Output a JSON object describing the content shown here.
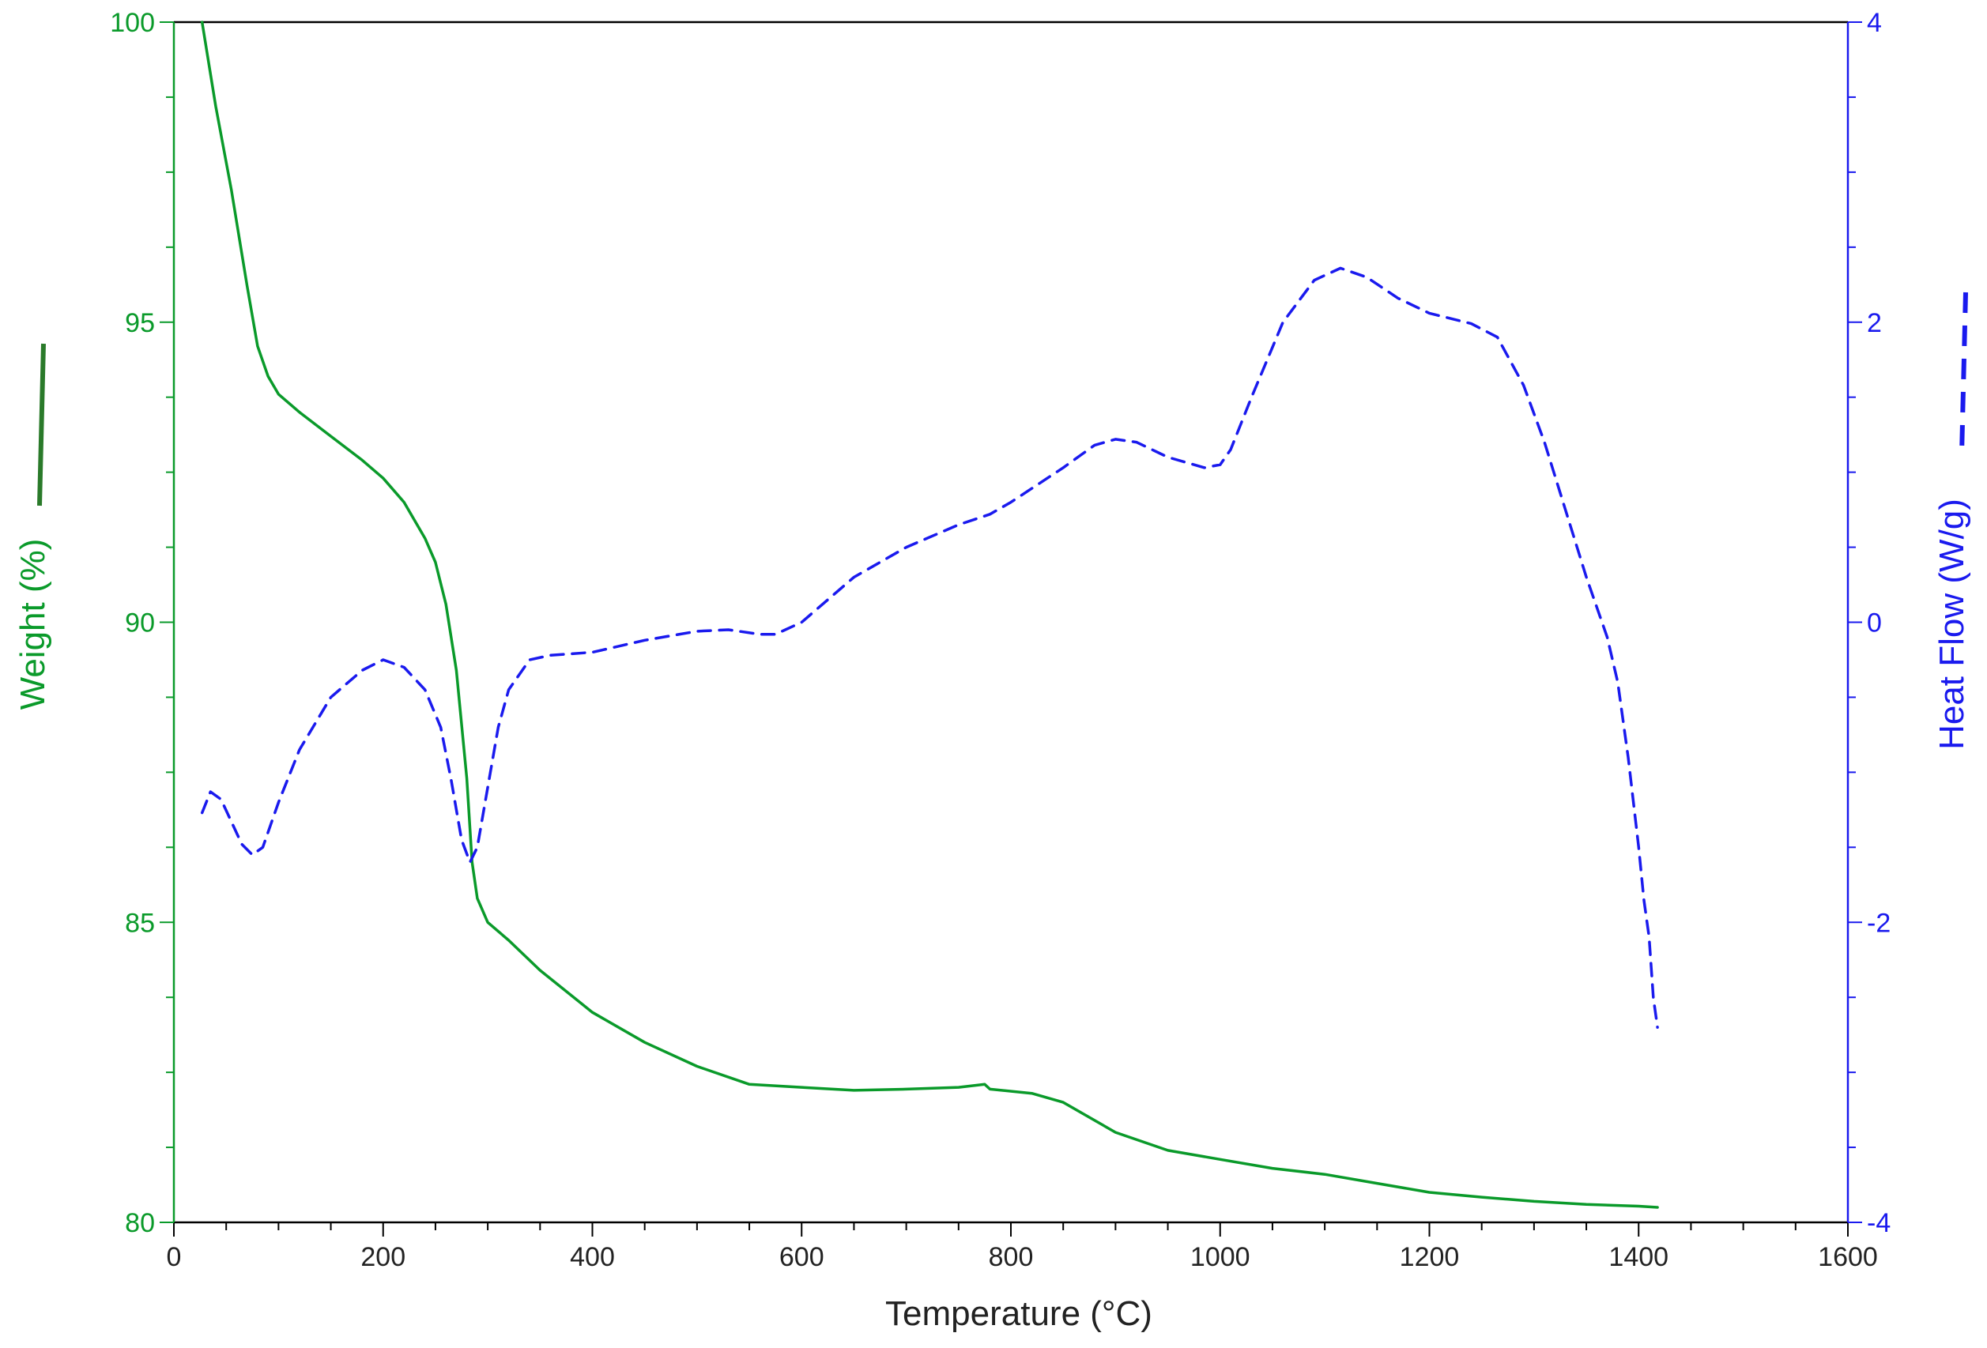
{
  "chart_data": {
    "type": "line",
    "title": "",
    "xlabel": "Temperature (°C)",
    "ylabel_left": "Weight (%)",
    "ylabel_right": "Heat Flow (W/g)",
    "xlim": [
      0,
      1600
    ],
    "ylim_left": [
      80,
      100
    ],
    "ylim_right": [
      -4,
      4
    ],
    "x_ticks": [
      0,
      200,
      400,
      600,
      800,
      1000,
      1200,
      1400,
      1600
    ],
    "y_left_ticks": [
      80,
      85,
      90,
      95,
      100
    ],
    "y_right_ticks": [
      -4,
      -2,
      0,
      2,
      4
    ],
    "grid": false,
    "legend": "none",
    "colors": {
      "weight": "#0a9a2a",
      "heat_flow": "#1a1aee",
      "weight_indicator": "#2a7a2a",
      "frame": "#000000"
    },
    "series": [
      {
        "axis": "left",
        "style": "solid",
        "points": [
          [
            27,
            100.0
          ],
          [
            40,
            98.6
          ],
          [
            55,
            97.2
          ],
          [
            70,
            95.6
          ],
          [
            80,
            94.6
          ],
          [
            90,
            94.1
          ],
          [
            100,
            93.8
          ],
          [
            120,
            93.5
          ],
          [
            150,
            93.1
          ],
          [
            180,
            92.7
          ],
          [
            200,
            92.4
          ],
          [
            220,
            92.0
          ],
          [
            240,
            91.4
          ],
          [
            250,
            91.0
          ],
          [
            260,
            90.3
          ],
          [
            270,
            89.2
          ],
          [
            280,
            87.4
          ],
          [
            285,
            86.0
          ],
          [
            290,
            85.4
          ],
          [
            300,
            85.0
          ],
          [
            320,
            84.7
          ],
          [
            350,
            84.2
          ],
          [
            400,
            83.5
          ],
          [
            450,
            83.0
          ],
          [
            500,
            82.6
          ],
          [
            550,
            82.3
          ],
          [
            600,
            82.25
          ],
          [
            650,
            82.2
          ],
          [
            700,
            82.22
          ],
          [
            750,
            82.25
          ],
          [
            775,
            82.3
          ],
          [
            780,
            82.22
          ],
          [
            820,
            82.15
          ],
          [
            850,
            82.0
          ],
          [
            880,
            81.7
          ],
          [
            900,
            81.5
          ],
          [
            950,
            81.2
          ],
          [
            1000,
            81.05
          ],
          [
            1050,
            80.9
          ],
          [
            1100,
            80.8
          ],
          [
            1150,
            80.65
          ],
          [
            1200,
            80.5
          ],
          [
            1250,
            80.42
          ],
          [
            1300,
            80.35
          ],
          [
            1350,
            80.3
          ],
          [
            1400,
            80.27
          ],
          [
            1418,
            80.25
          ]
        ]
      },
      {
        "axis": "right",
        "style": "dashed",
        "points": [
          [
            27,
            -1.27
          ],
          [
            35,
            -1.13
          ],
          [
            45,
            -1.18
          ],
          [
            55,
            -1.33
          ],
          [
            65,
            -1.48
          ],
          [
            75,
            -1.55
          ],
          [
            85,
            -1.5
          ],
          [
            100,
            -1.2
          ],
          [
            120,
            -0.85
          ],
          [
            150,
            -0.5
          ],
          [
            180,
            -0.32
          ],
          [
            200,
            -0.25
          ],
          [
            220,
            -0.3
          ],
          [
            240,
            -0.45
          ],
          [
            255,
            -0.7
          ],
          [
            265,
            -1.05
          ],
          [
            275,
            -1.45
          ],
          [
            283,
            -1.6
          ],
          [
            290,
            -1.5
          ],
          [
            300,
            -1.1
          ],
          [
            310,
            -0.7
          ],
          [
            320,
            -0.45
          ],
          [
            340,
            -0.25
          ],
          [
            360,
            -0.22
          ],
          [
            400,
            -0.2
          ],
          [
            450,
            -0.12
          ],
          [
            500,
            -0.06
          ],
          [
            530,
            -0.05
          ],
          [
            560,
            -0.08
          ],
          [
            575,
            -0.08
          ],
          [
            600,
            0.0
          ],
          [
            650,
            0.3
          ],
          [
            700,
            0.5
          ],
          [
            750,
            0.65
          ],
          [
            780,
            0.72
          ],
          [
            800,
            0.8
          ],
          [
            850,
            1.03
          ],
          [
            880,
            1.18
          ],
          [
            900,
            1.22
          ],
          [
            920,
            1.2
          ],
          [
            950,
            1.1
          ],
          [
            985,
            1.03
          ],
          [
            1000,
            1.05
          ],
          [
            1010,
            1.15
          ],
          [
            1030,
            1.5
          ],
          [
            1060,
            2.0
          ],
          [
            1090,
            2.28
          ],
          [
            1115,
            2.36
          ],
          [
            1140,
            2.3
          ],
          [
            1170,
            2.16
          ],
          [
            1200,
            2.06
          ],
          [
            1240,
            1.99
          ],
          [
            1265,
            1.9
          ],
          [
            1290,
            1.58
          ],
          [
            1310,
            1.2
          ],
          [
            1330,
            0.75
          ],
          [
            1350,
            0.3
          ],
          [
            1370,
            -0.1
          ],
          [
            1380,
            -0.4
          ],
          [
            1390,
            -0.9
          ],
          [
            1400,
            -1.5
          ],
          [
            1405,
            -1.85
          ],
          [
            1410,
            -2.1
          ],
          [
            1414,
            -2.5
          ],
          [
            1418,
            -2.7
          ]
        ]
      }
    ]
  }
}
